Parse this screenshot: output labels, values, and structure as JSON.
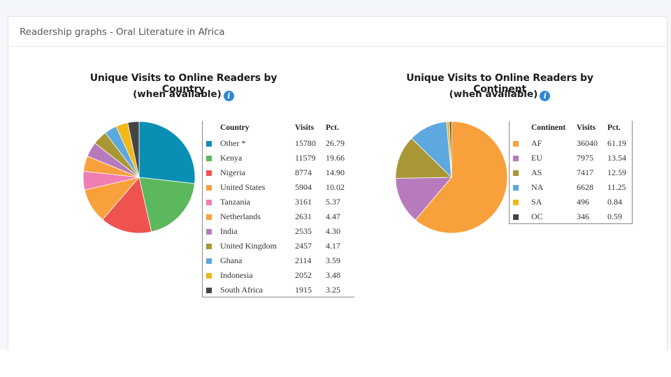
{
  "card": {
    "title": "Readership graphs - Oral Literature in Africa"
  },
  "chart_data": [
    {
      "type": "pie",
      "title": "Unique Visits to Online Readers by Country",
      "subtitle": "(when available)",
      "legend_headers": [
        "Country",
        "Visits",
        "Pct."
      ],
      "slices": [
        {
          "label": "Other *",
          "value": 15780,
          "pct": "26.79",
          "color": "#0a8fb4"
        },
        {
          "label": "Kenya",
          "value": 11579,
          "pct": "19.66",
          "color": "#5cb85c"
        },
        {
          "label": "Nigeria",
          "value": 8774,
          "pct": "14.90",
          "color": "#ef5350"
        },
        {
          "label": "United States",
          "value": 5904,
          "pct": "10.02",
          "color": "#f8a13c"
        },
        {
          "label": "Tanzania",
          "value": 3161,
          "pct": "5.37",
          "color": "#f07eb3"
        },
        {
          "label": "Netherlands",
          "value": 2631,
          "pct": "4.47",
          "color": "#f8a13c"
        },
        {
          "label": "India",
          "value": 2535,
          "pct": "4.30",
          "color": "#b77bbd"
        },
        {
          "label": "United Kingdom",
          "value": 2457,
          "pct": "4.17",
          "color": "#a99634"
        },
        {
          "label": "Ghana",
          "value": 2114,
          "pct": "3.59",
          "color": "#5da8de"
        },
        {
          "label": "Indonesia",
          "value": 2052,
          "pct": "3.48",
          "color": "#f2b718"
        },
        {
          "label": "South Africa",
          "value": 1915,
          "pct": "3.25",
          "color": "#454545"
        }
      ]
    },
    {
      "type": "pie",
      "title": "Unique Visits to Online Readers by Continent",
      "subtitle": "(when available)",
      "legend_headers": [
        "Continent",
        "Visits",
        "Pct."
      ],
      "slices": [
        {
          "label": "AF",
          "value": 36040,
          "pct": "61.19",
          "color": "#f8a13c"
        },
        {
          "label": "EU",
          "value": 7975,
          "pct": "13.54",
          "color": "#b77bbd"
        },
        {
          "label": "AS",
          "value": 7417,
          "pct": "12.59",
          "color": "#a99634"
        },
        {
          "label": "NA",
          "value": 6628,
          "pct": "11.25",
          "color": "#5da8de"
        },
        {
          "label": "SA",
          "value": 496,
          "pct": "0.84",
          "color": "#f2b718"
        },
        {
          "label": "OC",
          "value": 346,
          "pct": "0.59",
          "color": "#454545"
        }
      ]
    }
  ]
}
